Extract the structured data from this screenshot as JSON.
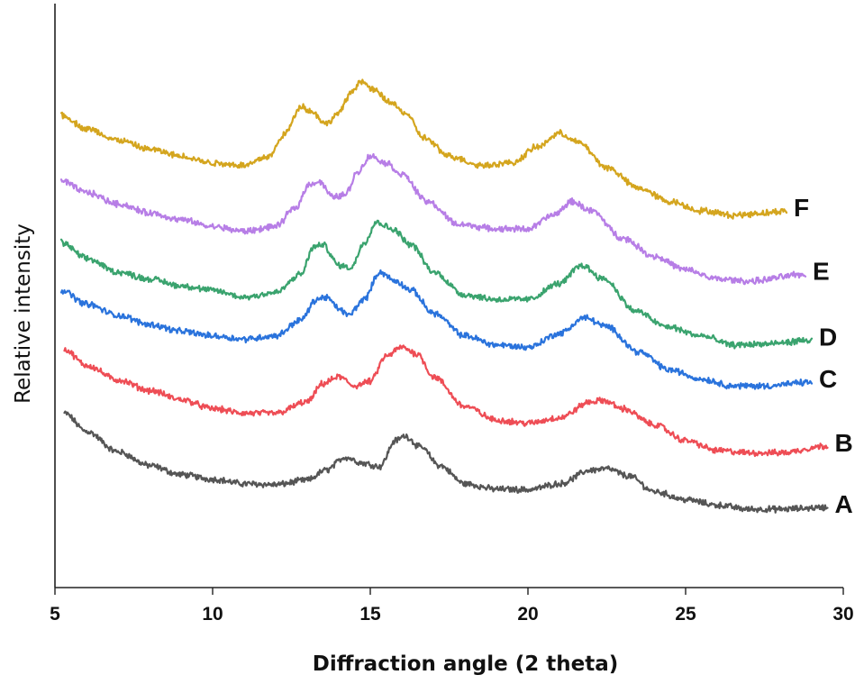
{
  "chart_data": {
    "type": "line",
    "title": "",
    "xlabel": "Diffraction angle (2 theta)",
    "ylabel": "Relative intensity",
    "xlim": [
      5,
      30
    ],
    "xticks": [
      5,
      10,
      15,
      20,
      25,
      30
    ],
    "xtick_labels": [
      "5",
      "10",
      "15",
      "20",
      "25",
      "30"
    ],
    "ylim": [
      0,
      100
    ],
    "yticks_shown": false,
    "grid": false,
    "legend": "inline labels at right end of each trace",
    "series": [
      {
        "name": "A",
        "color": "#555555",
        "x": [
          5.3,
          6,
          7,
          8,
          9,
          10,
          11,
          12,
          13,
          13.6,
          14.2,
          14.8,
          15.3,
          15.8,
          16.1,
          16.6,
          17.2,
          18,
          19,
          20,
          21,
          22,
          22.5,
          23.2,
          24,
          25,
          26,
          27,
          28,
          29.5
        ],
        "y": [
          30.0,
          26.0,
          21.5,
          18.5,
          16.5,
          15.5,
          14.5,
          14.3,
          15.3,
          17.5,
          20.3,
          19.0,
          18.3,
          24.0,
          25.0,
          22.5,
          18.5,
          14.5,
          13.3,
          13.2,
          14.5,
          17.5,
          17.8,
          16.2,
          12.8,
          11.0,
          9.8,
          8.9,
          8.9,
          9.3
        ]
      },
      {
        "name": "B",
        "color": "#ee4d55",
        "x": [
          5.3,
          6,
          7,
          8,
          9,
          10,
          11,
          12,
          13,
          13.5,
          14,
          14.5,
          15,
          15.5,
          16,
          16.5,
          17,
          18,
          19,
          20,
          21,
          22,
          22.4,
          23,
          24,
          25,
          26,
          27,
          28,
          29.5
        ],
        "y": [
          44.0,
          40.5,
          37.3,
          35.0,
          33.0,
          31.0,
          30.0,
          30.0,
          32.5,
          36.5,
          38.0,
          36.0,
          37.0,
          42.5,
          44.5,
          43.0,
          38.0,
          31.5,
          28.5,
          27.8,
          29.0,
          32.5,
          32.8,
          31.0,
          27.5,
          24.0,
          21.8,
          21.3,
          21.3,
          22.8
        ]
      },
      {
        "name": "C",
        "color": "#2a73dc",
        "x": [
          5.2,
          6,
          7,
          8,
          9,
          10,
          11,
          12,
          12.8,
          13.3,
          13.6,
          14,
          14.3,
          14.8,
          15.3,
          15.8,
          16.3,
          17,
          18,
          19,
          20,
          21,
          21.8,
          22.5,
          23.5,
          24.5,
          25.5,
          26.5,
          27.5,
          29
        ],
        "y": [
          57.0,
          54.0,
          51.5,
          49.5,
          48.0,
          47.0,
          46.3,
          47.0,
          50.5,
          55.0,
          55.5,
          53.0,
          51.5,
          55.0,
          61.0,
          59.0,
          57.0,
          52.0,
          47.0,
          45.0,
          44.5,
          47.5,
          51.0,
          49.0,
          43.5,
          39.5,
          37.5,
          36.0,
          36.0,
          36.8
        ]
      },
      {
        "name": "D",
        "color": "#3aa36e",
        "x": [
          5.2,
          6,
          7,
          8,
          9,
          10,
          11,
          12,
          12.8,
          13.2,
          13.5,
          14,
          14.4,
          14.8,
          15.2,
          15.7,
          16.3,
          17,
          18,
          19,
          20,
          21,
          21.7,
          22.4,
          23.4,
          24.4,
          25.5,
          26.5,
          27.5,
          29
        ],
        "y": [
          67.5,
          64.0,
          61.0,
          59.5,
          58.0,
          57.0,
          55.5,
          56.5,
          60.5,
          66.5,
          67.0,
          62.5,
          62.0,
          67.5,
          72.0,
          70.5,
          67.0,
          61.0,
          56.0,
          55.0,
          55.0,
          58.5,
          62.5,
          59.5,
          52.5,
          49.0,
          47.0,
          45.0,
          45.2,
          46.0
        ]
      },
      {
        "name": "E",
        "color": "#b77ee6",
        "x": [
          5.2,
          6,
          7,
          8,
          9,
          10,
          11,
          12,
          12.6,
          13.1,
          13.4,
          13.8,
          14.2,
          14.6,
          15,
          15.5,
          16,
          16.8,
          17.8,
          19,
          20,
          20.8,
          21.4,
          22,
          23,
          24,
          25,
          26,
          27,
          28.8
        ],
        "y": [
          81.0,
          78.5,
          76.0,
          74.0,
          72.5,
          71.0,
          70.0,
          71.0,
          75.0,
          80.5,
          80.8,
          77.5,
          78.0,
          83.0,
          86.5,
          85.0,
          82.5,
          76.5,
          71.5,
          70.5,
          70.5,
          73.5,
          76.5,
          74.5,
          68.5,
          64.5,
          61.5,
          59.5,
          59.0,
          60.5
        ]
      },
      {
        "name": "F",
        "color": "#d4a51e",
        "x": [
          5.2,
          6,
          7,
          8,
          9,
          10,
          11,
          11.8,
          12.3,
          12.8,
          13.2,
          13.6,
          14,
          14.4,
          14.7,
          15.1,
          15.6,
          16.1,
          16.7,
          17.5,
          18.5,
          19.5,
          20.3,
          21,
          21.6,
          22.5,
          23.5,
          24.5,
          25.5,
          26.5,
          27.5,
          28.2
        ],
        "y": [
          95.5,
          92.5,
          90.0,
          88.0,
          86.5,
          85.0,
          84.5,
          86.5,
          91.5,
          97.5,
          96.0,
          93.5,
          96.0,
          100.5,
          103.0,
          101.0,
          98.5,
          96.0,
          90.5,
          86.5,
          84.5,
          85.0,
          88.5,
          91.5,
          89.5,
          84.0,
          79.5,
          76.5,
          74.5,
          73.5,
          74.0,
          74.5
        ]
      }
    ]
  }
}
